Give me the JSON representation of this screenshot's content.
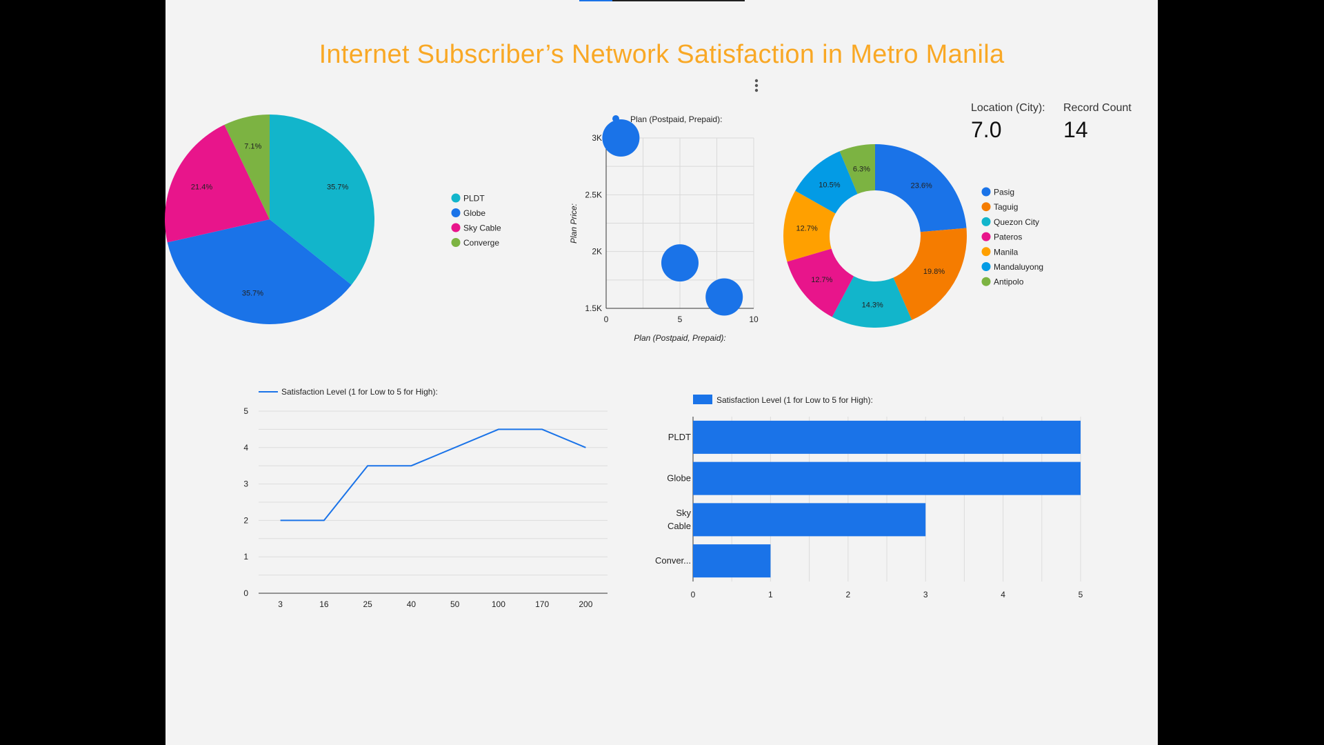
{
  "page": {
    "title": "Internet Subscriber’s Network Satisfaction in Metro Manila",
    "menu_icon": "more-vert-icon"
  },
  "kpis": [
    {
      "label": "Location (City):",
      "value": "7.0"
    },
    {
      "label": "Record Count",
      "value": "14"
    }
  ],
  "colors": {
    "title": "#f9a825",
    "primary_blue": "#1a73e8",
    "background": "#f3f3f3"
  },
  "chart_data": [
    {
      "type": "pie",
      "categories": [
        "PLDT",
        "Globe",
        "Sky Cable",
        "Converge"
      ],
      "values": [
        35.7,
        35.7,
        21.4,
        7.1
      ],
      "labels": [
        "35.7%",
        "35.7%",
        "21.4%",
        "7.1%"
      ],
      "colors": [
        "#12b5cb",
        "#1a73e8",
        "#e8158b",
        "#7cb342"
      ],
      "legend_position": "right"
    },
    {
      "type": "scatter",
      "legend": "Plan (Postpaid, Prepaid):",
      "xlabel": "Plan (Postpaid, Prepaid):",
      "ylabel": "Plan Price:",
      "x_ticks": [
        "0",
        "5",
        "10"
      ],
      "y_ticks": [
        "1.5K",
        "2K",
        "2.5K",
        "3K"
      ],
      "xlim": [
        0,
        10
      ],
      "ylim": [
        1500,
        3000
      ],
      "points": [
        {
          "x": 1,
          "y": 3000
        },
        {
          "x": 5,
          "y": 1900
        },
        {
          "x": 8,
          "y": 1600
        }
      ],
      "grid": true,
      "legend_position": "top"
    },
    {
      "type": "pie",
      "donut": true,
      "categories": [
        "Pasig",
        "Taguig",
        "Quezon City",
        "Pateros",
        "Manila",
        "Mandaluyong",
        "Antipolo"
      ],
      "values": [
        23.6,
        19.8,
        14.3,
        12.7,
        12.7,
        10.5,
        6.3
      ],
      "labels": [
        "23.6%",
        "19.8%",
        "14.3%",
        "12.7%",
        "12.7%",
        "10.5%",
        "6.3%"
      ],
      "colors": [
        "#1a73e8",
        "#f57c00",
        "#12b5cb",
        "#e8158b",
        "#ffa000",
        "#039be5",
        "#7cb342"
      ],
      "legend_position": "right"
    },
    {
      "type": "line",
      "legend": "Satisfaction Level (1 for Low to 5 for High):",
      "categories": [
        "3",
        "16",
        "25",
        "40",
        "50",
        "100",
        "170",
        "200"
      ],
      "values": [
        2,
        2,
        3.5,
        3.5,
        4,
        4.5,
        4.5,
        4
      ],
      "y_ticks": [
        "0",
        "1",
        "2",
        "3",
        "4",
        "5"
      ],
      "ylim": [
        0,
        5
      ],
      "grid": true,
      "legend_position": "top-left"
    },
    {
      "type": "bar",
      "orientation": "horizontal",
      "legend": "Satisfaction Level (1 for Low to 5 for High):",
      "categories": [
        "PLDT",
        "Globe",
        "Sky Cable",
        "Conver..."
      ],
      "category_lines": [
        [
          "PLDT"
        ],
        [
          "Globe"
        ],
        [
          "Sky",
          "Cable"
        ],
        [
          "Conver..."
        ]
      ],
      "values": [
        5,
        5,
        3,
        1
      ],
      "x_ticks": [
        "0",
        "1",
        "2",
        "3",
        "4",
        "5"
      ],
      "xlim": [
        0,
        5
      ],
      "grid": true,
      "legend_position": "top-left"
    }
  ]
}
